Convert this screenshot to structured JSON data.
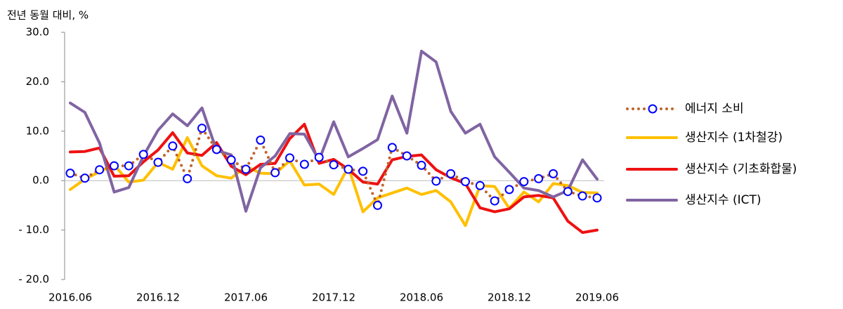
{
  "chart_data": {
    "type": "line",
    "y_axis_label": "전년 동월 대비, %",
    "categories": [
      "2016.06",
      null,
      null,
      null,
      null,
      null,
      "2016.12",
      null,
      null,
      null,
      null,
      null,
      "2017.06",
      null,
      null,
      null,
      null,
      null,
      "2017.12",
      null,
      null,
      null,
      null,
      null,
      "2018.06",
      null,
      null,
      null,
      null,
      null,
      "2018.12",
      null,
      null,
      null,
      null,
      null,
      "2019.06"
    ],
    "ylim": [
      -20,
      30
    ],
    "yticks": [
      {
        "value": -20,
        "label": "- 20.0"
      },
      {
        "value": -10,
        "label": "- 10.0"
      },
      {
        "value": 0,
        "label": "0.0"
      },
      {
        "value": 10,
        "label": "10.0"
      },
      {
        "value": 20,
        "label": "20.0"
      },
      {
        "value": 30,
        "label": "30.0"
      }
    ],
    "grid": false,
    "legend": "right",
    "series": [
      {
        "name": "에너지 소비",
        "color": "#c0652a",
        "style": "dotted",
        "marker": "circle",
        "marker_color": "#0000ff",
        "values": [
          1.5,
          0.5,
          2.2,
          3.0,
          3.0,
          5.3,
          3.7,
          7.0,
          0.4,
          10.6,
          6.3,
          4.2,
          2.3,
          8.2,
          1.6,
          4.6,
          3.3,
          4.7,
          3.2,
          2.3,
          1.9,
          -5.0,
          6.7,
          5.0,
          3.1,
          -0.1,
          1.4,
          -0.2,
          -1.0,
          -4.1,
          -1.8,
          -0.2,
          0.4,
          1.4,
          -2.2,
          -3.1,
          -3.5
        ]
      },
      {
        "name": "생산지수 (1차철강)",
        "color": "#ffc000",
        "style": "solid",
        "values": [
          -1.8,
          0.3,
          1.8,
          3.2,
          -0.3,
          0.1,
          3.7,
          2.3,
          8.7,
          3.0,
          1.0,
          0.5,
          2.9,
          1.5,
          1.4,
          4.0,
          -0.9,
          -0.7,
          -2.8,
          2.8,
          -6.3,
          -3.5,
          -2.5,
          -1.5,
          -2.8,
          -2.0,
          -4.3,
          -9.1,
          -1.0,
          -1.2,
          -5.6,
          -2.3,
          -4.3,
          -0.6,
          -1.0,
          -2.4,
          -2.5
        ]
      },
      {
        "name": "생산지수 (기초화합물)",
        "color": "#ee1111",
        "style": "solid",
        "values": [
          5.8,
          5.9,
          6.6,
          0.9,
          1.0,
          3.8,
          6.2,
          9.7,
          5.6,
          5.1,
          7.7,
          2.9,
          1.2,
          3.3,
          3.5,
          8.5,
          11.4,
          3.5,
          4.3,
          2.3,
          -0.3,
          -0.7,
          4.2,
          4.9,
          5.2,
          2.2,
          0.6,
          -0.6,
          -5.5,
          -6.3,
          -5.7,
          -3.3,
          -3.0,
          -3.5,
          -8.2,
          -10.5,
          -10.0
        ]
      },
      {
        "name": "생산지수 (ICT)",
        "color": "#8064a2",
        "style": "solid",
        "values": [
          15.7,
          13.8,
          7.6,
          -2.3,
          -1.4,
          5.0,
          10.2,
          13.5,
          11.1,
          14.7,
          6.1,
          5.2,
          -6.2,
          2.6,
          5.0,
          9.5,
          9.4,
          4.1,
          11.9,
          4.8,
          6.5,
          8.3,
          17.1,
          9.6,
          26.2,
          24.0,
          14.0,
          9.6,
          11.4,
          4.8,
          1.7,
          -1.5,
          -2.0,
          -3.3,
          -2.0,
          4.2,
          0.3
        ]
      }
    ]
  }
}
